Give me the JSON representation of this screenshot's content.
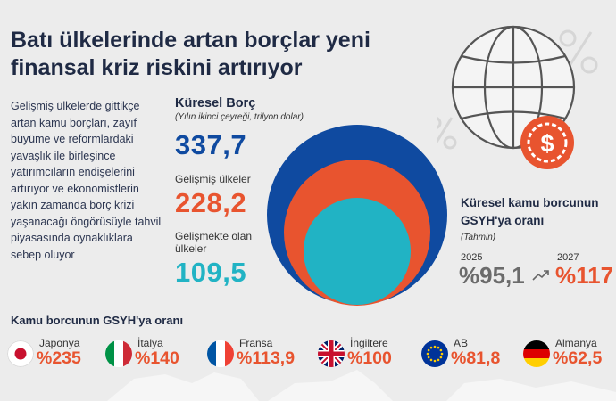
{
  "title": "Batı ülkelerinde artan borçlar yeni finansal kriz riskini artırıyor",
  "intro": "Gelişmiş ülkelerde gittikçe artan kamu borçları, zayıf büyüme ve reformlardaki yavaşlık ile birleşince yatırımcıların endişelerini artırıyor ve ekonomistlerin yakın zamanda borç krizi yaşanacağı öngörüsüyle tahvil piyasasında oynaklıklara sebep oluyor",
  "global_debt": {
    "title": "Küresel Borç",
    "subtitle": "(Yılın ikinci çeyreği, trilyon dolar)",
    "total_value": "337,7",
    "developed_label": "Gelişmiş ülkeler",
    "developed_value": "228,2",
    "emerging_label_1": "Gelişmekte olan",
    "emerging_label_2": "ülkeler",
    "emerging_value": "109,5"
  },
  "global_public_debt": {
    "title_1": "Küresel kamu borcunun",
    "title_2": "GSYH'ya oranı",
    "subtitle": "(Tahmin)",
    "year_1": "2025",
    "value_1": "%95,1",
    "year_2": "2027",
    "value_2": "%117"
  },
  "countries_title": "Kamu borcunun GSYH'ya oranı",
  "countries": [
    {
      "name": "Japonya",
      "value": "%235"
    },
    {
      "name": "İtalya",
      "value": "%140"
    },
    {
      "name": "Fransa",
      "value": "%113,9"
    },
    {
      "name": "İngiltere",
      "value": "%100"
    },
    {
      "name": "AB",
      "value": "%81,8"
    },
    {
      "name": "Almanya",
      "value": "%62,5"
    }
  ],
  "colors": {
    "navy": "#1f2a44",
    "blue": "#0f4aa0",
    "orange": "#e8542f",
    "teal": "#21b3c4",
    "gray": "#6b6b6b",
    "background": "#ececec"
  },
  "icons": [
    "globe-icon",
    "dollar-coin-icon",
    "percent-icon",
    "trend-arrow-icon"
  ]
}
